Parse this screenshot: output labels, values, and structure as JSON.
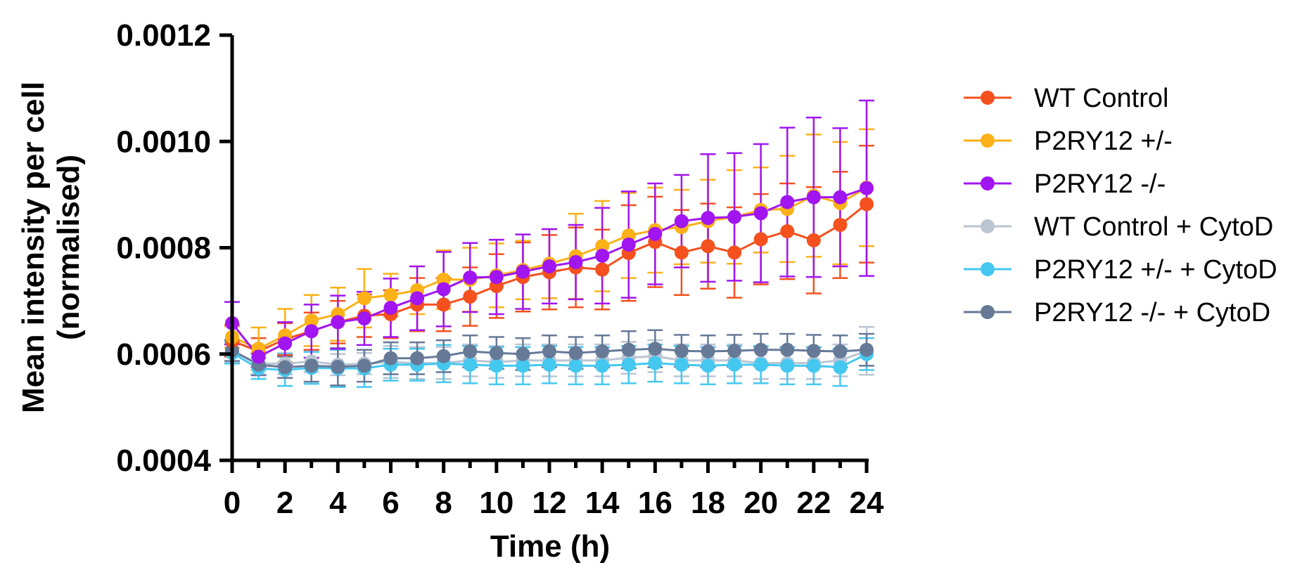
{
  "chart_data": {
    "type": "line",
    "title": "",
    "xlabel": "Time (h)",
    "ylabel_line1": "Mean intensity per cell",
    "ylabel_line2": "(normalised)",
    "xlim": [
      0,
      24
    ],
    "ylim": [
      0.0004,
      0.0012
    ],
    "x_ticks": [
      0,
      2,
      4,
      6,
      8,
      10,
      12,
      14,
      16,
      18,
      20,
      22,
      24
    ],
    "y_ticks": [
      0.0004,
      0.0006,
      0.0008,
      0.001,
      0.0012
    ],
    "y_tick_labels": [
      "0.0004",
      "0.0006",
      "0.0008",
      "0.0010",
      "0.0012"
    ],
    "grid": false,
    "legend_position": "right",
    "x": [
      0,
      1,
      2,
      3,
      4,
      5,
      6,
      7,
      8,
      9,
      10,
      11,
      12,
      13,
      14,
      15,
      16,
      17,
      18,
      19,
      20,
      21,
      22,
      23,
      24
    ],
    "series": [
      {
        "name": "WT Control",
        "color": "#F4511E",
        "values": [
          0.000625,
          0.000605,
          0.000628,
          0.000643,
          0.00066,
          0.000672,
          0.000675,
          0.000693,
          0.000693,
          0.000708,
          0.000728,
          0.000745,
          0.000754,
          0.000763,
          0.000759,
          0.00079,
          0.000811,
          0.000791,
          0.000803,
          0.000791,
          0.000816,
          0.000831,
          0.000814,
          0.000843,
          0.000882
        ],
        "errors": [
          3e-05,
          2.5e-05,
          3e-05,
          3.5e-05,
          4e-05,
          4e-05,
          4.5e-05,
          5e-05,
          5e-05,
          5.5e-05,
          6e-05,
          6.5e-05,
          7e-05,
          7.5e-05,
          7.5e-05,
          9e-05,
          8.5e-05,
          8e-05,
          8e-05,
          8.5e-05,
          8.5e-05,
          9e-05,
          0.0001,
          0.0001,
          0.00011
        ]
      },
      {
        "name": "P2RY12 +/-",
        "color": "#FBB117",
        "values": [
          0.000632,
          0.00061,
          0.000635,
          0.000663,
          0.000675,
          0.000705,
          0.000711,
          0.00072,
          0.00074,
          0.00074,
          0.000748,
          0.000758,
          0.00077,
          0.000784,
          0.000803,
          0.000823,
          0.000833,
          0.000839,
          0.00085,
          0.000858,
          0.000871,
          0.000873,
          0.000898,
          0.000884,
          0.000913
        ],
        "errors": [
          2e-05,
          4e-05,
          5e-05,
          4.8e-05,
          5e-05,
          5.5e-05,
          4e-05,
          4.5e-05,
          5.5e-05,
          6e-05,
          6e-05,
          5.5e-05,
          6.5e-05,
          8e-05,
          8.5e-05,
          8e-05,
          8e-05,
          7e-05,
          7.8e-05,
          8.8e-05,
          8e-05,
          0.0001,
          0.000115,
          0.000115,
          0.00011
        ]
      },
      {
        "name": "P2RY12 -/-",
        "color": "#A115F0",
        "values": [
          0.000658,
          0.000595,
          0.00062,
          0.000643,
          0.00066,
          0.000667,
          0.000687,
          0.000705,
          0.000722,
          0.000744,
          0.000745,
          0.000755,
          0.000765,
          0.000773,
          0.000785,
          0.000806,
          0.000826,
          0.00085,
          0.000856,
          0.000858,
          0.000865,
          0.000886,
          0.000895,
          0.000895,
          0.000912
        ],
        "errors": [
          4e-05,
          2e-05,
          4e-05,
          5e-05,
          5e-05,
          5e-05,
          5.5e-05,
          6e-05,
          7e-05,
          6.5e-05,
          7e-05,
          7e-05,
          7e-05,
          7e-05,
          9e-05,
          0.0001,
          9.5e-05,
          8.7e-05,
          0.00012,
          0.00012,
          0.00013,
          0.00014,
          0.00015,
          0.00013,
          0.000165
        ]
      },
      {
        "name": "WT Control + CytoD",
        "color": "#BAC5D3",
        "values": [
          0.000605,
          0.000582,
          0.000582,
          0.000586,
          0.00058,
          0.000582,
          0.000585,
          0.000583,
          0.000583,
          0.000588,
          0.000585,
          0.000588,
          0.000588,
          0.000588,
          0.000588,
          0.000593,
          0.000596,
          0.000588,
          0.000588,
          0.000588,
          0.000583,
          0.000583,
          0.000583,
          0.000588,
          0.000606
        ],
        "errors": [
          2e-05,
          2e-05,
          2e-05,
          2e-05,
          2e-05,
          2e-05,
          3e-05,
          3e-05,
          3e-05,
          3e-05,
          3e-05,
          3e-05,
          3e-05,
          3e-05,
          3e-05,
          3e-05,
          3e-05,
          3e-05,
          3e-05,
          3e-05,
          3e-05,
          3e-05,
          3e-05,
          3e-05,
          4.5e-05
        ]
      },
      {
        "name": "P2RY12 +/- + CytoD",
        "color": "#45C8F0",
        "values": [
          0.000602,
          0.000573,
          0.00057,
          0.000574,
          0.000573,
          0.000573,
          0.00058,
          0.00058,
          0.000582,
          0.00058,
          0.000578,
          0.000578,
          0.00058,
          0.000578,
          0.000578,
          0.00058,
          0.000583,
          0.00058,
          0.000578,
          0.00058,
          0.00058,
          0.000578,
          0.000578,
          0.000575,
          0.0006
        ],
        "errors": [
          2e-05,
          2e-05,
          3e-05,
          3e-05,
          3.5e-05,
          3.5e-05,
          3e-05,
          3e-05,
          3.5e-05,
          3.5e-05,
          3.5e-05,
          3.5e-05,
          3.5e-05,
          3.5e-05,
          3.5e-05,
          3.5e-05,
          3.5e-05,
          3.5e-05,
          3.5e-05,
          3.5e-05,
          3.5e-05,
          3.5e-05,
          3.5e-05,
          3.5e-05,
          3e-05
        ]
      },
      {
        "name": "P2RY12 -/- + CytoD",
        "color": "#667A98",
        "values": [
          0.000607,
          0.00058,
          0.000575,
          0.000578,
          0.000576,
          0.000578,
          0.000592,
          0.000592,
          0.000596,
          0.000605,
          0.000602,
          0.0006,
          0.000605,
          0.000602,
          0.000605,
          0.000608,
          0.00061,
          0.000606,
          0.000605,
          0.000606,
          0.000608,
          0.000608,
          0.000606,
          0.000605,
          0.000608
        ],
        "errors": [
          2e-05,
          2e-05,
          2e-05,
          3e-05,
          3.5e-05,
          3e-05,
          3e-05,
          3e-05,
          3e-05,
          3e-05,
          3e-05,
          3e-05,
          3e-05,
          3e-05,
          3e-05,
          3.5e-05,
          3.5e-05,
          3e-05,
          3e-05,
          3e-05,
          3e-05,
          3e-05,
          3e-05,
          3e-05,
          3e-05
        ]
      }
    ]
  }
}
